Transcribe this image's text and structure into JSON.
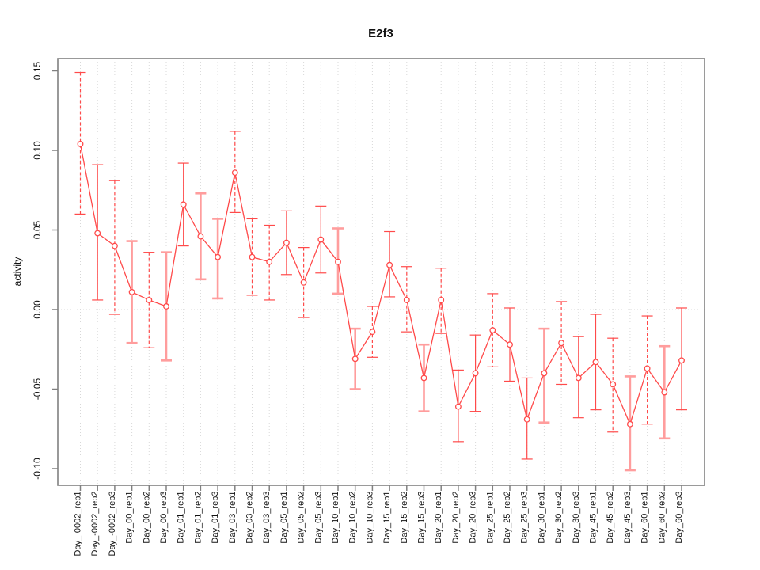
{
  "chart_data": {
    "type": "line",
    "title": "E2f3",
    "xlabel": "",
    "ylabel": "activity",
    "ylim": [
      -0.1104,
      0.1577
    ],
    "yticks": [
      "-0.10",
      "-0.05",
      "0.00",
      "0.05",
      "0.10",
      "0.15"
    ],
    "ytick_values": [
      -0.1,
      -0.05,
      0.0,
      0.05,
      0.1,
      0.15
    ],
    "grid": "vertical dotted line at every category; horizontal dotted line at y=0 only",
    "legend": "none",
    "series_name": "activity",
    "marker": "open-circle",
    "categories": [
      "Day_-0002_rep1",
      "Day_-0002_rep2",
      "Day_-0002_rep3",
      "Day_00_rep1",
      "Day_00_rep2",
      "Day_00_rep3",
      "Day_01_rep1",
      "Day_01_rep2",
      "Day_01_rep3",
      "Day_03_rep1",
      "Day_03_rep2",
      "Day_03_rep3",
      "Day_05_rep1",
      "Day_05_rep2",
      "Day_05_rep3",
      "Day_10_rep1",
      "Day_10_rep2",
      "Day_10_rep3",
      "Day_15_rep1",
      "Day_15_rep2",
      "Day_15_rep3",
      "Day_20_rep1",
      "Day_20_rep2",
      "Day_20_rep3",
      "Day_25_rep1",
      "Day_25_rep2",
      "Day_25_rep3",
      "Day_30_rep1",
      "Day_30_rep2",
      "Day_30_rep3",
      "Day_45_rep1",
      "Day_45_rep2",
      "Day_45_rep3",
      "Day_60_rep1",
      "Day_60_rep2",
      "Day_60_rep3"
    ],
    "values": [
      0.104,
      0.048,
      0.04,
      0.011,
      0.006,
      0.002,
      0.066,
      0.046,
      0.033,
      0.086,
      0.033,
      0.03,
      0.042,
      0.017,
      0.044,
      0.03,
      -0.031,
      -0.014,
      0.028,
      0.006,
      -0.043,
      0.006,
      -0.061,
      -0.04,
      -0.013,
      -0.022,
      -0.069,
      -0.04,
      -0.021,
      -0.043,
      -0.033,
      -0.047,
      -0.072,
      -0.037,
      -0.052,
      -0.032
    ],
    "error_high": [
      0.149,
      0.091,
      0.081,
      0.043,
      0.036,
      0.036,
      0.092,
      0.073,
      0.057,
      0.112,
      0.057,
      0.053,
      0.062,
      0.039,
      0.065,
      0.051,
      -0.012,
      0.002,
      0.049,
      0.027,
      -0.022,
      0.026,
      -0.038,
      -0.016,
      0.01,
      0.001,
      -0.043,
      -0.012,
      0.005,
      -0.017,
      -0.003,
      -0.018,
      -0.042,
      -0.004,
      -0.023,
      0.001
    ],
    "error_low": [
      0.06,
      0.006,
      -0.003,
      -0.021,
      -0.024,
      -0.032,
      0.04,
      0.019,
      0.007,
      0.061,
      0.009,
      0.006,
      0.022,
      -0.005,
      0.023,
      0.01,
      -0.05,
      -0.03,
      0.008,
      -0.014,
      -0.064,
      -0.015,
      -0.083,
      -0.064,
      -0.036,
      -0.045,
      -0.094,
      -0.071,
      -0.047,
      -0.068,
      -0.063,
      -0.077,
      -0.101,
      -0.072,
      -0.081,
      -0.063
    ],
    "bar_styles": [
      "dashed",
      "solid",
      "dashed",
      "thick",
      "dashed",
      "thick",
      "solid",
      "thick",
      "thick",
      "dashed",
      "dashed",
      "dashed",
      "solid",
      "dashed",
      "solid",
      "thick",
      "thick",
      "dashed",
      "solid",
      "dashed",
      "thick",
      "dashed",
      "solid",
      "solid",
      "dashed",
      "solid",
      "solid",
      "thick",
      "dashed",
      "solid",
      "solid",
      "dashed",
      "thick",
      "dashed",
      "thick",
      "solid"
    ],
    "colors": {
      "line": "#ff4a4a",
      "bar_thick": "#ff9d9d",
      "grid": "#d8d8d8",
      "box": "#808080",
      "text": "#111111"
    }
  }
}
